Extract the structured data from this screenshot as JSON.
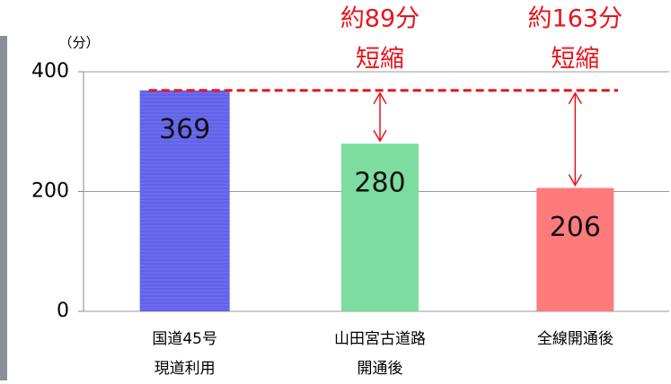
{
  "chart_data": {
    "type": "bar",
    "y_unit": "（分）",
    "categories": [
      [
        "国道45号",
        "現道利用"
      ],
      [
        "山田宮古道路",
        "開通後"
      ],
      [
        "全線開通後"
      ]
    ],
    "values": [
      369,
      280,
      206
    ],
    "colors": [
      "#6b6bf0",
      "#7ddca0",
      "#ff7b7b"
    ],
    "ylim": [
      0,
      400
    ],
    "yticks": [
      0,
      200,
      400
    ],
    "grid": true,
    "reference_color": "#e8141c",
    "annotations": [
      {
        "bar": 1,
        "lines": [
          "約89分",
          "短縮"
        ]
      },
      {
        "bar": 2,
        "lines": [
          "約163分",
          "短縮"
        ]
      }
    ]
  }
}
